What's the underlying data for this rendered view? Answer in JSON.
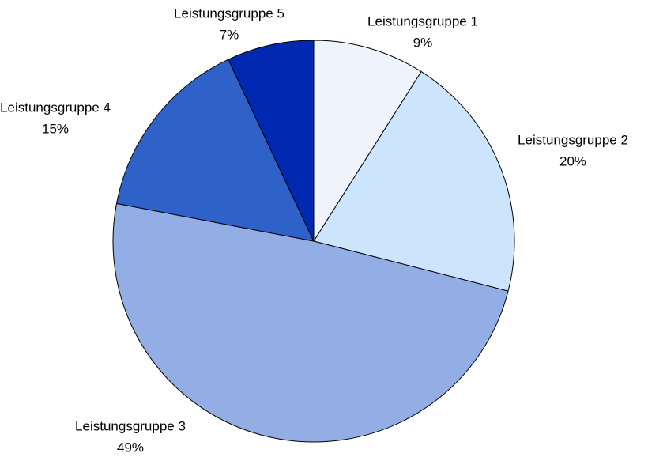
{
  "chart_data": {
    "type": "pie",
    "categories": [
      "Leistungsgruppe 1",
      "Leistungsgruppe 2",
      "Leistungsgruppe 3",
      "Leistungsgruppe 4",
      "Leistungsgruppe 5"
    ],
    "values": [
      9,
      20,
      49,
      15,
      7
    ],
    "value_labels": [
      "9%",
      "20%",
      "49%",
      "15%",
      "7%"
    ],
    "colors": [
      "#EEF3FC",
      "#CCE4FC",
      "#92AEE4",
      "#2F62C8",
      "#0028B0"
    ]
  }
}
